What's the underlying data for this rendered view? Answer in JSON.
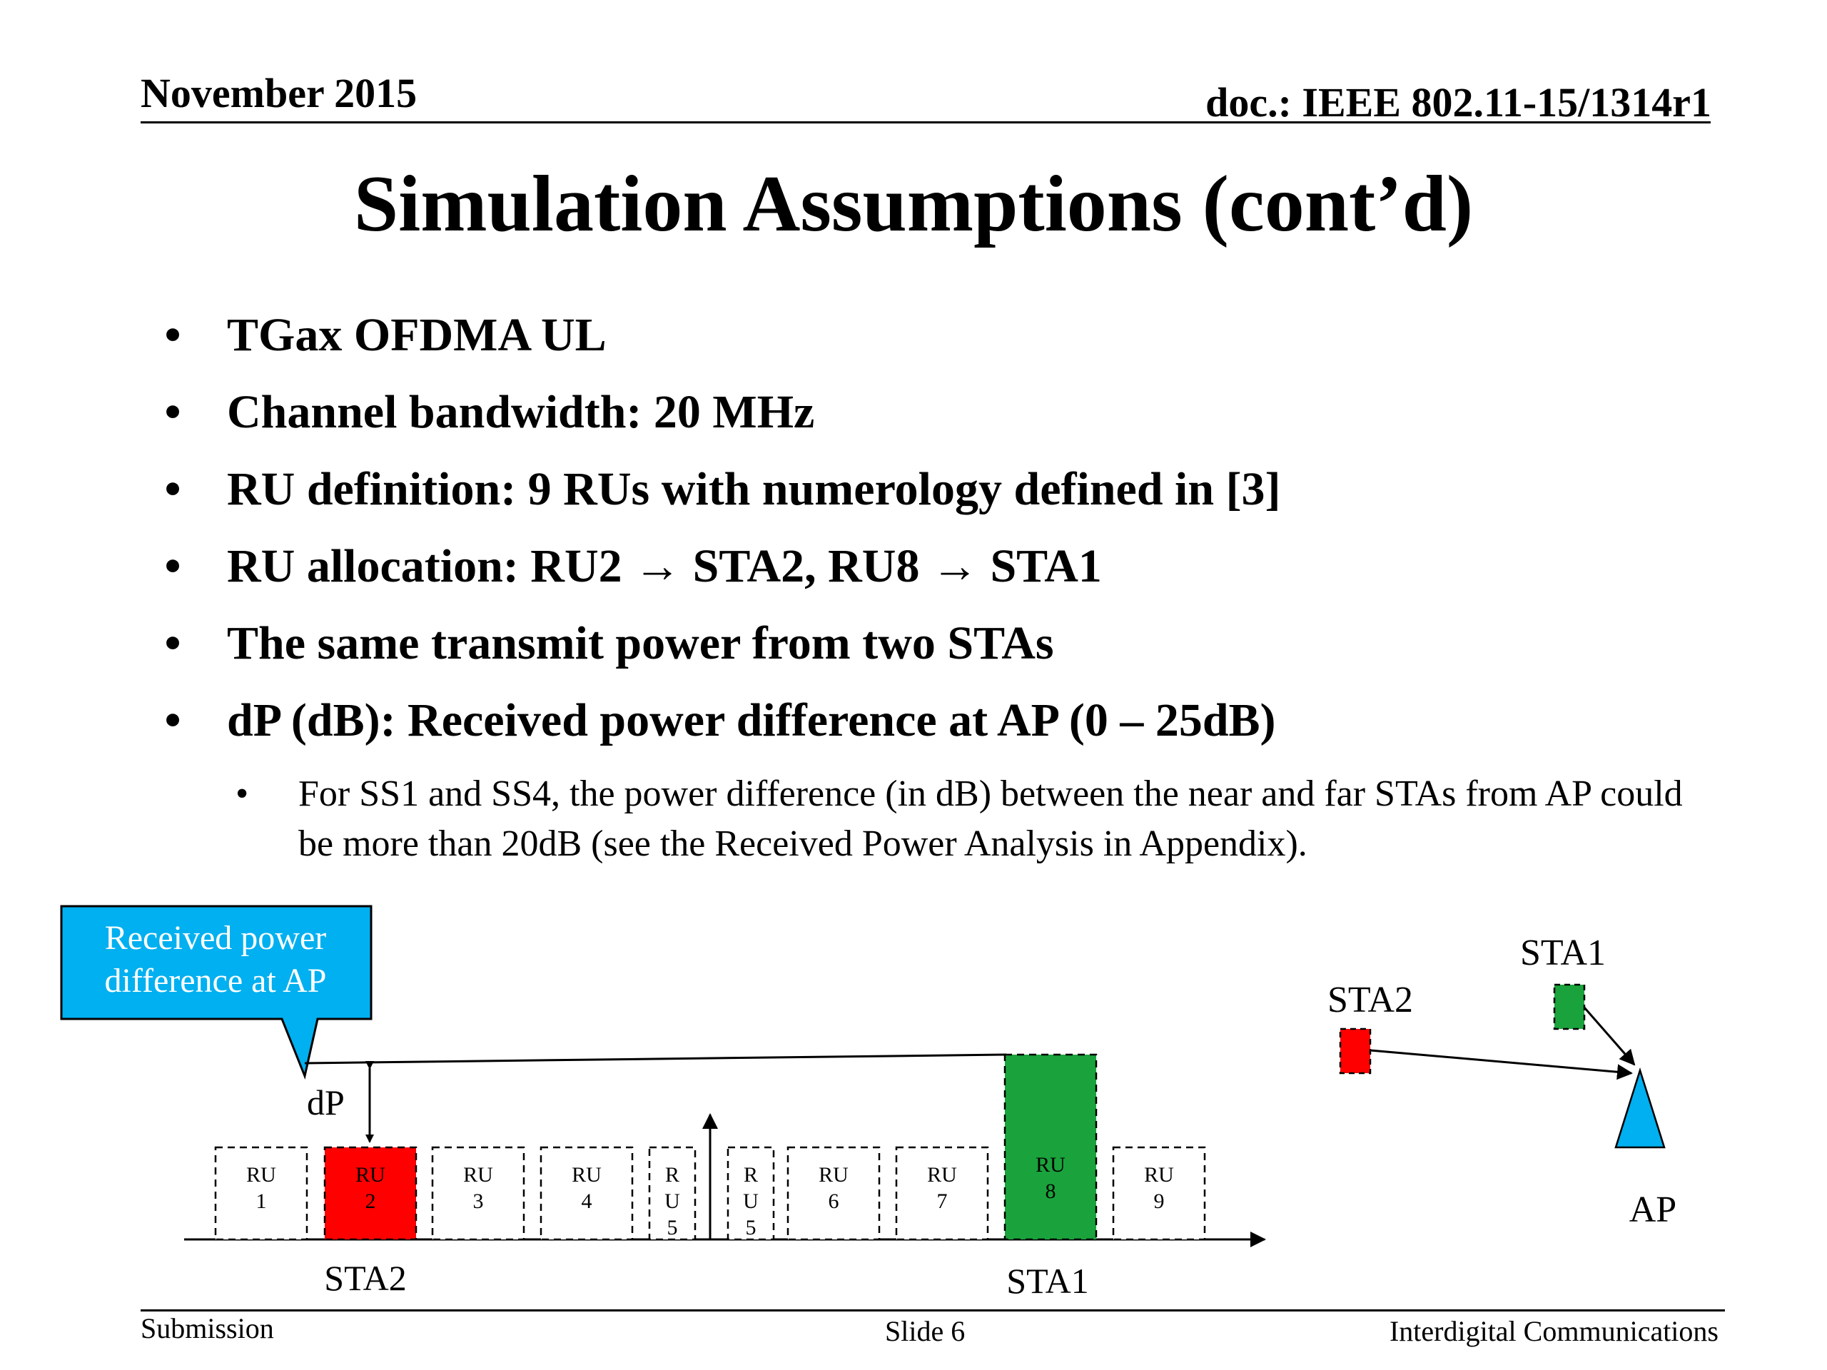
{
  "header": {
    "date": "November 2015",
    "doc": "doc.: IEEE 802.11-15/1314r1"
  },
  "title": "Simulation Assumptions (cont’d)",
  "bullets": [
    "TGax OFDMA UL",
    "Channel bandwidth: 20 MHz",
    "RU definition: 9 RUs with numerology defined in [3]",
    "RU allocation:  RU2 → STA2, RU8 → STA1",
    "The same transmit power from two STAs",
    "dP (dB): Received power difference at AP (0 – 25dB)"
  ],
  "sub_bullets": [
    "For SS1 and SS4, the power difference (in dB) between the near and far STAs from AP could be more than 20dB (see the Received Power Analysis in Appendix)."
  ],
  "diagram": {
    "callout_line1": "Received power",
    "callout_line2": "difference at AP",
    "dp_label": "dP",
    "ru_labels": [
      {
        "l1": "RU",
        "l2": "1"
      },
      {
        "l1": "RU",
        "l2": "2"
      },
      {
        "l1": "RU",
        "l2": "3"
      },
      {
        "l1": "RU",
        "l2": "4"
      },
      {
        "l1": "R",
        "l2": "U",
        "l3": "5"
      },
      {
        "l1": "R",
        "l2": "U",
        "l3": "5"
      },
      {
        "l1": "RU",
        "l2": "6"
      },
      {
        "l1": "RU",
        "l2": "7"
      },
      {
        "l1": "RU",
        "l2": "8"
      },
      {
        "l1": "RU",
        "l2": "9"
      }
    ],
    "sta2_below": "STA2",
    "sta1_below": "STA1",
    "topo_sta1": "STA1",
    "topo_sta2": "STA2",
    "topo_ap": "AP",
    "colors": {
      "sta2_red": "#ff0000",
      "sta1_green": "#1aa33c",
      "callout_blue": "#00b0f0",
      "ap_blue": "#00b0f0"
    }
  },
  "footer": {
    "left": "Submission",
    "center": "Slide 6",
    "right": "Interdigital Communications"
  }
}
